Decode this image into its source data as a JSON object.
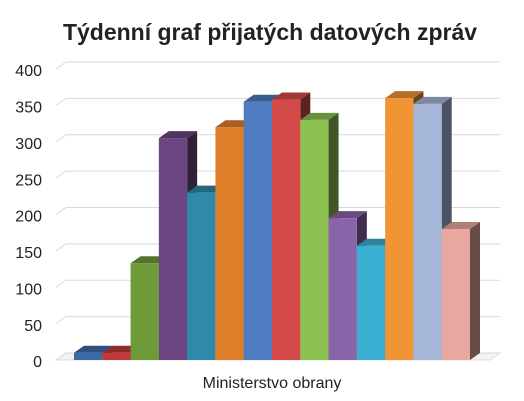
{
  "chart_data": {
    "type": "bar3d",
    "title": "Týdenní graf přijatých datových zpráv",
    "categories": [
      "Ministerstvo obrany"
    ],
    "series": [
      {
        "color": "#3e6aa8",
        "values": [
          10
        ]
      },
      {
        "color": "#c0393b",
        "values": [
          10
        ]
      },
      {
        "color": "#6e9a3a",
        "values": [
          133
        ]
      },
      {
        "color": "#6b4681",
        "values": [
          305
        ]
      },
      {
        "color": "#2e8aa8",
        "values": [
          230
        ]
      },
      {
        "color": "#e07f2a",
        "values": [
          320
        ]
      },
      {
        "color": "#4f7bc0",
        "values": [
          355
        ]
      },
      {
        "color": "#d44a48",
        "values": [
          358
        ]
      },
      {
        "color": "#8cc152",
        "values": [
          330
        ]
      },
      {
        "color": "#8a64a8",
        "values": [
          195
        ]
      },
      {
        "color": "#3aaed0",
        "values": [
          157
        ]
      },
      {
        "color": "#f09436",
        "values": [
          360
        ]
      },
      {
        "color": "#a6b6d8",
        "values": [
          352
        ]
      },
      {
        "color": "#e8a8a0",
        "values": [
          180
        ]
      }
    ],
    "ylim": [
      0,
      400
    ],
    "yticks": [
      0,
      50,
      100,
      150,
      200,
      250,
      300,
      350,
      400
    ],
    "grid": true
  }
}
